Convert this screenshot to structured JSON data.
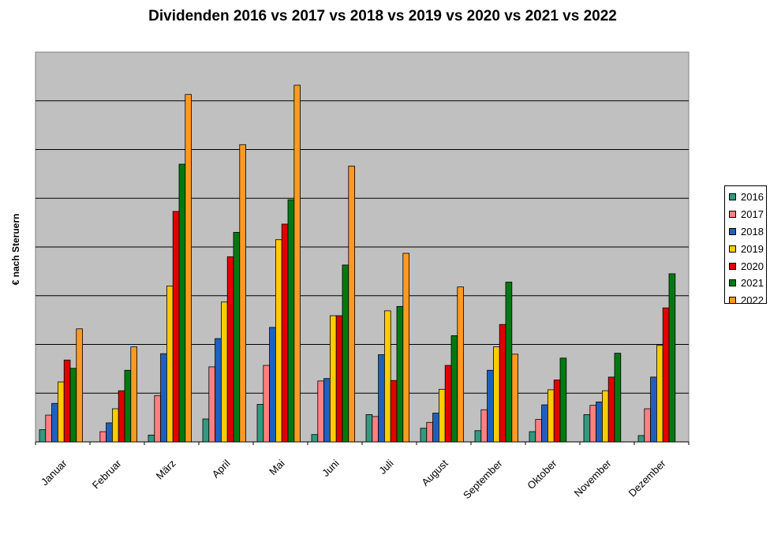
{
  "chart_data": {
    "type": "bar",
    "title": "Dividenden 2016 vs 2017 vs 2018 vs 2019 vs 2020 vs 2021 vs 2022",
    "xlabel": "",
    "ylabel": "€ nach Steruern",
    "ylim": [
      0,
      8
    ],
    "y_tick_labels_shown": false,
    "grid": true,
    "legend_position": "right",
    "plot_background": "#c0c0c0",
    "categories": [
      "Januar",
      "Februar",
      "März",
      "April",
      "Mai",
      "Juni",
      "Juli",
      "August",
      "September",
      "Oktober",
      "November",
      "Dezember"
    ],
    "series": [
      {
        "name": "2016",
        "color": "#339980",
        "values": [
          0.25,
          0,
          0.14,
          0.47,
          0.77,
          0.15,
          0.56,
          0.28,
          0.23,
          0.21,
          0.56,
          0.13
        ]
      },
      {
        "name": "2017",
        "color": "#ff8080",
        "values": [
          0.55,
          0.21,
          0.95,
          1.54,
          1.57,
          1.25,
          0.52,
          0.4,
          0.66,
          0.46,
          0.75,
          0.68
        ]
      },
      {
        "name": "2018",
        "color": "#1f5fbf",
        "values": [
          0.79,
          0.39,
          1.81,
          2.12,
          2.35,
          1.3,
          1.79,
          0.59,
          1.47,
          0.76,
          0.82,
          1.33
        ]
      },
      {
        "name": "2019",
        "color": "#ffcc00",
        "values": [
          1.23,
          0.68,
          3.2,
          2.87,
          4.15,
          2.59,
          2.69,
          1.08,
          1.95,
          1.07,
          1.05,
          1.98
        ]
      },
      {
        "name": "2020",
        "color": "#e00000",
        "values": [
          1.68,
          1.05,
          4.73,
          3.8,
          4.47,
          2.59,
          1.26,
          1.57,
          2.41,
          1.27,
          1.33,
          2.75
        ]
      },
      {
        "name": "2021",
        "color": "#007a10",
        "values": [
          1.51,
          1.47,
          5.7,
          4.3,
          4.97,
          3.63,
          2.78,
          2.18,
          3.28,
          1.72,
          1.82,
          3.45
        ]
      },
      {
        "name": "2022",
        "color": "#ff9922",
        "values": [
          2.32,
          1.95,
          7.13,
          6.1,
          7.32,
          5.66,
          3.87,
          3.18,
          1.8,
          0,
          0,
          0
        ]
      }
    ]
  }
}
